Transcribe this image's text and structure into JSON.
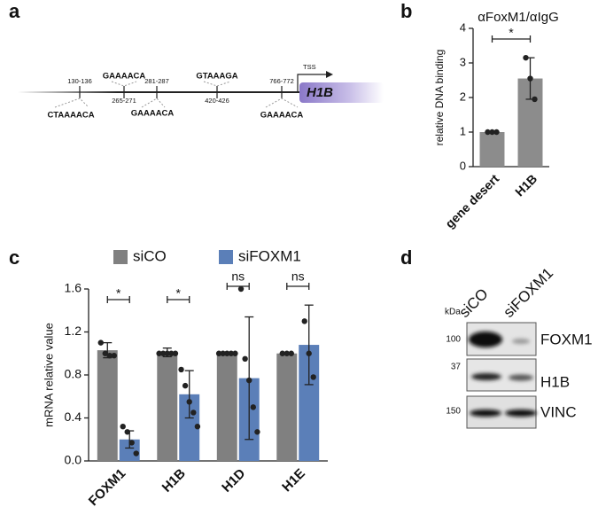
{
  "panel_labels": [
    "a",
    "b",
    "c",
    "d"
  ],
  "panel_a": {
    "above": [
      "130-136",
      "GAAAACA",
      "281-287",
      "GTAAAGA",
      "766-772"
    ],
    "below": [
      "CTAAAACA",
      "265-271",
      "GAAAACA",
      "420-426",
      "GAAAACA"
    ],
    "tss": "TSS",
    "gene": "H1B"
  },
  "chart_data": [
    {
      "type": "bar",
      "title": "αFoxM1/αIgG",
      "ylabel": "relative DNA binding",
      "categories": [
        "gene desert",
        "H1B"
      ],
      "values": [
        1.0,
        2.55
      ],
      "errors": [
        null,
        0.6
      ],
      "points": [
        [
          1.0,
          1.0,
          1.0
        ],
        [
          3.15,
          2.55,
          1.95
        ]
      ],
      "color": "#8c8c8c",
      "ylim": [
        0,
        4
      ],
      "yticks": [
        0,
        1,
        2,
        3,
        4
      ],
      "significance": [
        "*"
      ]
    },
    {
      "type": "bar",
      "ylabel": "mRNA relative value",
      "categories": [
        "FOXM1",
        "H1B",
        "H1D",
        "H1E"
      ],
      "series": [
        {
          "name": "siCO",
          "color": "#808080",
          "values": [
            1.03,
            1.01,
            1.0,
            1.0
          ],
          "errors": [
            0.07,
            0.04,
            null,
            null
          ],
          "points": [
            [
              1.1,
              1.0,
              0.98,
              0.98
            ],
            [
              1.0,
              1.0,
              1.0,
              1.0,
              1.0
            ],
            [
              1.0,
              1.0,
              1.0,
              1.0,
              1.0
            ],
            [
              1.0,
              1.0,
              1.0
            ]
          ]
        },
        {
          "name": "siFOXM1",
          "color": "#5b7fb8",
          "values": [
            0.2,
            0.62,
            0.77,
            1.08
          ],
          "errors": [
            0.08,
            0.22,
            0.57,
            0.37
          ],
          "points": [
            [
              0.32,
              0.27,
              0.17,
              0.07
            ],
            [
              0.85,
              0.7,
              0.55,
              0.45,
              0.32
            ],
            [
              1.6,
              0.95,
              0.75,
              0.5,
              0.27
            ],
            [
              1.3,
              1.0,
              0.78
            ]
          ]
        }
      ],
      "ylim": [
        0,
        1.6
      ],
      "yticks": [
        {
          "value": 0,
          "label": "0.0"
        },
        0.4,
        0.8,
        1.2,
        1.6
      ],
      "significance": [
        "*",
        "*",
        "ns",
        "ns"
      ],
      "legend": "top"
    }
  ],
  "panel_d": {
    "lanes": [
      "siCO",
      "siFOXM1"
    ],
    "unit": "kDa",
    "markers": [
      100,
      37,
      150
    ],
    "proteins": [
      "FOXM1",
      "H1B",
      "VINC"
    ]
  }
}
